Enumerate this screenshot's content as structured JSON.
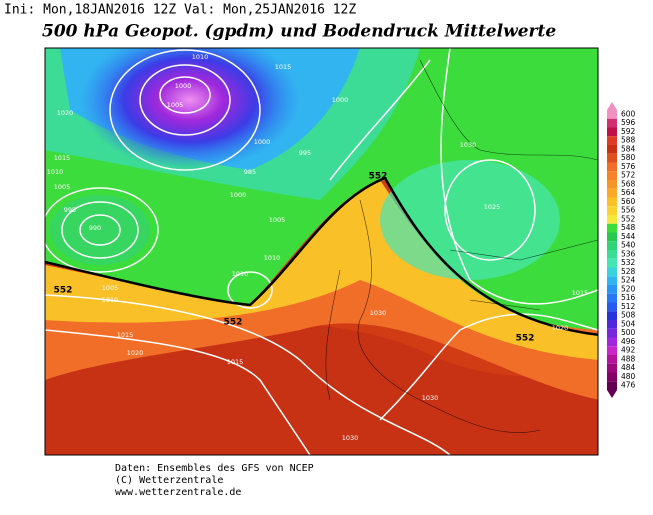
{
  "header": {
    "init": "Ini: Mon,18JAN2016 12Z Val: Mon,25JAN2016 12Z",
    "title": "500 hPa Geopot. (gpdm) und Bodendruck Mittelwerte"
  },
  "map": {
    "contour_labels": [
      "1010",
      "1015",
      "1000",
      "1005",
      "1000",
      "1020",
      "1015",
      "1010",
      "1005",
      "995",
      "990",
      "1000",
      "1005",
      "1010",
      "1005",
      "1010",
      "1015",
      "1020",
      "1015",
      "1010",
      "1030",
      "1025",
      "1030",
      "1020",
      "1015",
      "1030",
      "1030",
      "552",
      "552",
      "552",
      "552",
      "985",
      "995",
      "1000"
    ]
  },
  "colorbar": {
    "levels": [
      600,
      596,
      592,
      588,
      584,
      580,
      576,
      572,
      568,
      564,
      560,
      556,
      552,
      548,
      544,
      540,
      536,
      532,
      528,
      524,
      520,
      516,
      512,
      508,
      504,
      500,
      496,
      492,
      488,
      484,
      480,
      476
    ],
    "colors": [
      "#f090c0",
      "#d0306e",
      "#c0104a",
      "#e03c28",
      "#c83214",
      "#e0501e",
      "#f06e28",
      "#f58228",
      "#f59628",
      "#faaa28",
      "#fac028",
      "#fad232",
      "#f5ea3c",
      "#3cdc3c",
      "#28c850",
      "#32d278",
      "#3cdc96",
      "#46e6b4",
      "#3cd2dc",
      "#32b4f0",
      "#2896f5",
      "#2878f5",
      "#285af0",
      "#2832dc",
      "#5028dc",
      "#7828dc",
      "#a028dc",
      "#c828c8",
      "#b4149b",
      "#9b0a7d",
      "#820064",
      "#640050"
    ]
  },
  "footer": {
    "lines": [
      "Daten: Ensembles des GFS von NCEP",
      "(C) Wetterzentrale",
      "www.wetterzentrale.de"
    ]
  }
}
